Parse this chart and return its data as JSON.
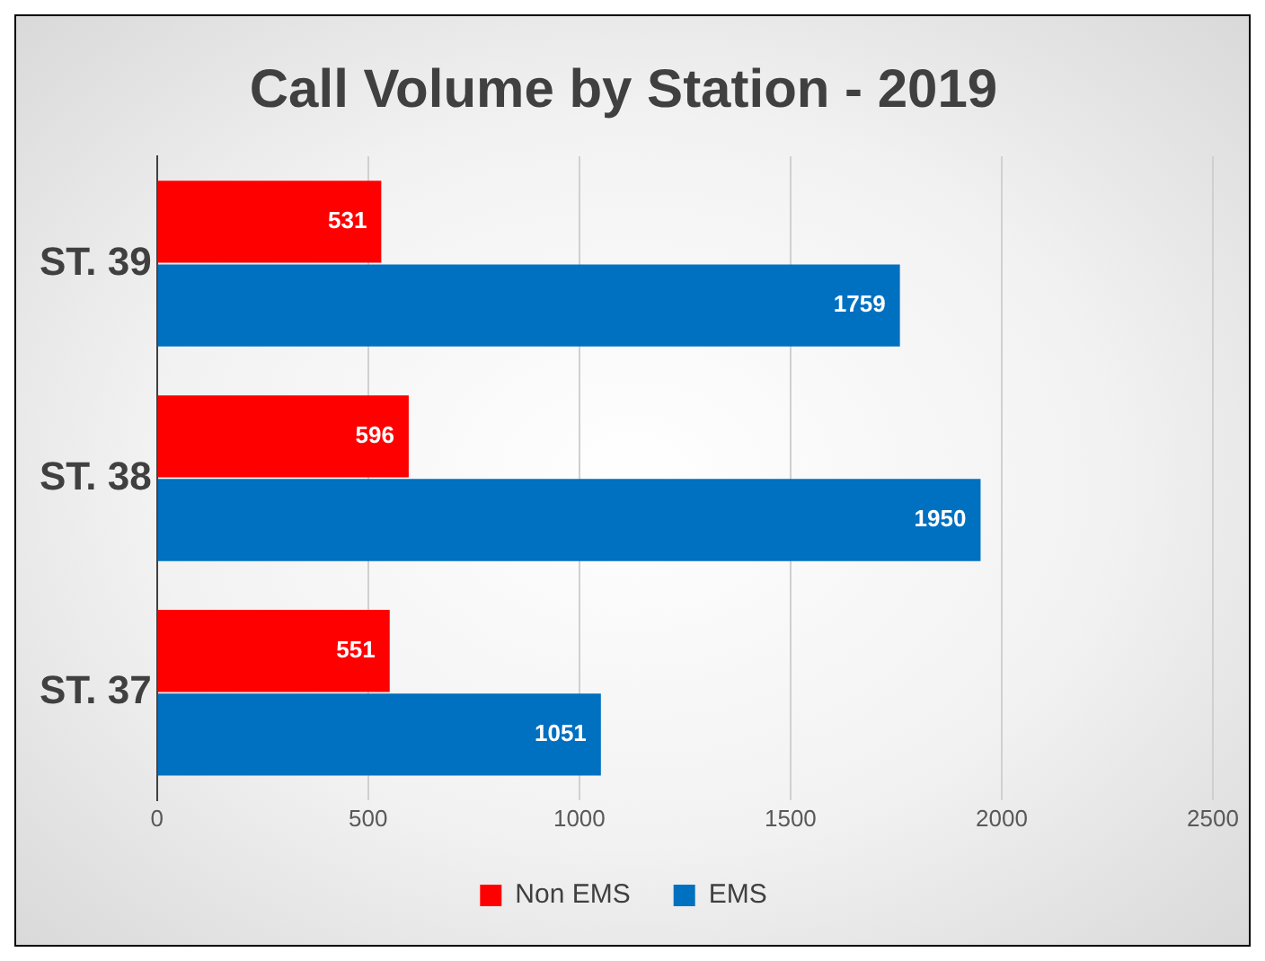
{
  "chart_data": {
    "type": "bar",
    "orientation": "horizontal",
    "title": "Call Volume by Station - 2019",
    "categories": [
      "ST. 39",
      "ST. 38",
      "ST. 37"
    ],
    "series": [
      {
        "name": "Non EMS",
        "color": "#ff0000",
        "values": [
          531,
          596,
          551
        ]
      },
      {
        "name": "EMS",
        "color": "#0070c0",
        "values": [
          1759,
          1950,
          1051
        ]
      }
    ],
    "xlim": [
      0,
      2500
    ],
    "xticks": [
      0,
      500,
      1000,
      1500,
      2000,
      2500
    ],
    "grid": "x",
    "legend": "bottom",
    "data_labels": true
  }
}
